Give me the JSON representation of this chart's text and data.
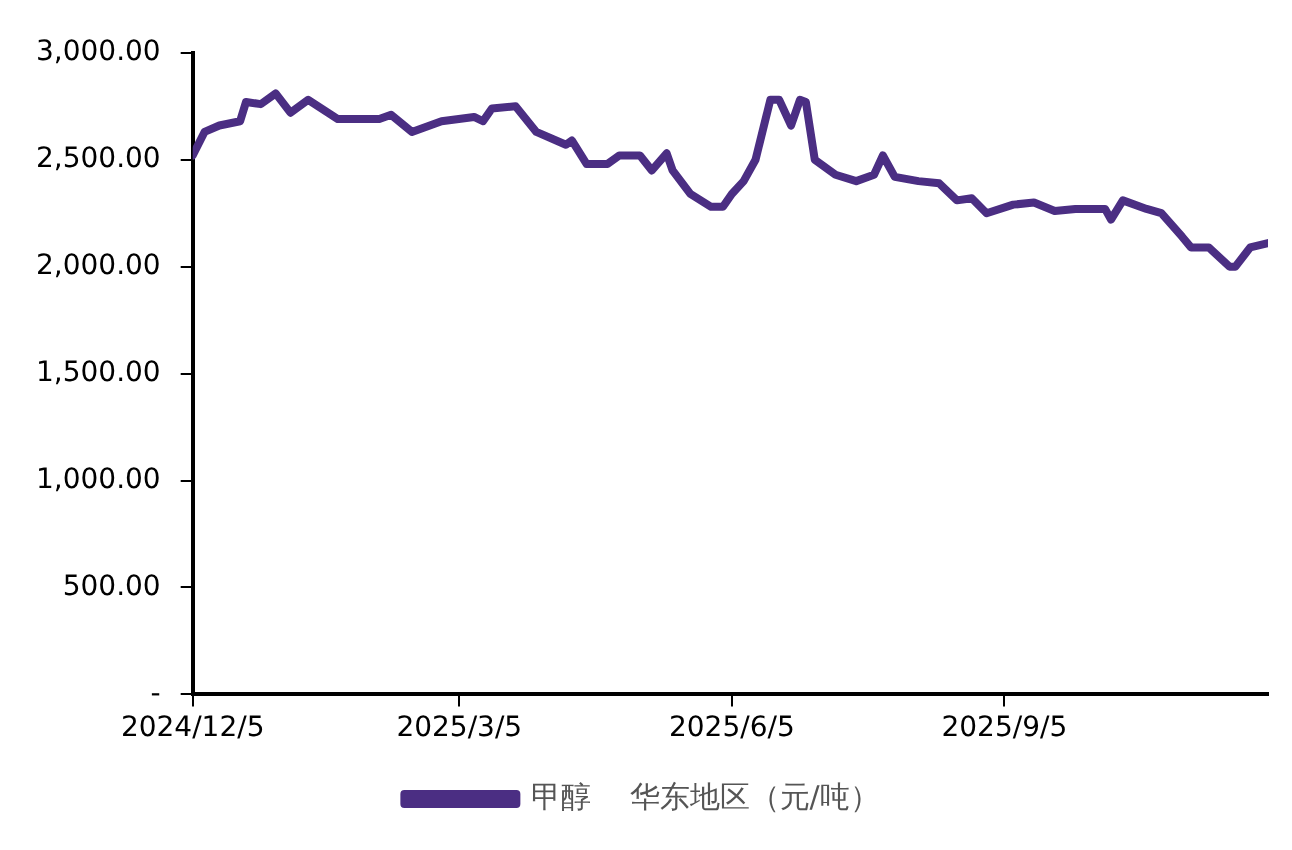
{
  "chart_data": {
    "type": "line",
    "legend": "bottom",
    "x": [
      "2024-12-05",
      "2024-12-09",
      "2024-12-14",
      "2024-12-21",
      "2024-12-23",
      "2024-12-28",
      "2025-01-02",
      "2025-01-07",
      "2025-01-13",
      "2025-01-23",
      "2025-02-06",
      "2025-02-10",
      "2025-02-17",
      "2025-02-27",
      "2025-03-10",
      "2025-03-13",
      "2025-03-16",
      "2025-03-24",
      "2025-03-31",
      "2025-04-10",
      "2025-04-12",
      "2025-04-17",
      "2025-04-24",
      "2025-04-28",
      "2025-05-05",
      "2025-05-09",
      "2025-05-14",
      "2025-05-16",
      "2025-05-22",
      "2025-05-29",
      "2025-06-02",
      "2025-06-05",
      "2025-06-09",
      "2025-06-13",
      "2025-06-18",
      "2025-06-21",
      "2025-06-25",
      "2025-06-28",
      "2025-06-30",
      "2025-07-03",
      "2025-07-10",
      "2025-07-17",
      "2025-07-23",
      "2025-07-26",
      "2025-07-30",
      "2025-08-07",
      "2025-08-14",
      "2025-08-20",
      "2025-08-25",
      "2025-08-30",
      "2025-09-08",
      "2025-09-15",
      "2025-09-22",
      "2025-09-29",
      "2025-10-09",
      "2025-10-11",
      "2025-10-15",
      "2025-10-23",
      "2025-10-28",
      "2025-11-04",
      "2025-11-07",
      "2025-11-13",
      "2025-11-20",
      "2025-11-22",
      "2025-11-27",
      "2025-12-03"
    ],
    "series": [
      {
        "name": "甲醇    华东地区（元/吨）",
        "color": "#4b2e83",
        "values": [
          2520,
          2630,
          2660,
          2680,
          2770,
          2760,
          2810,
          2720,
          2780,
          2690,
          2690,
          2710,
          2630,
          2680,
          2700,
          2680,
          2740,
          2750,
          2630,
          2570,
          2590,
          2480,
          2480,
          2520,
          2520,
          2450,
          2530,
          2450,
          2340,
          2280,
          2280,
          2340,
          2400,
          2500,
          2780,
          2780,
          2660,
          2780,
          2770,
          2500,
          2430,
          2400,
          2430,
          2520,
          2420,
          2400,
          2390,
          2310,
          2320,
          2250,
          2290,
          2300,
          2260,
          2270,
          2270,
          2220,
          2310,
          2270,
          2250,
          2140,
          2090,
          2090,
          2000,
          2000,
          2090,
          2110
        ]
      }
    ],
    "xlim": [
      "2024-12-05",
      "2025-12-03"
    ],
    "xticks": [
      {
        "value": "2024-12-05",
        "label": "2024/12/5"
      },
      {
        "value": "2025-03-05",
        "label": "2025/3/5"
      },
      {
        "value": "2025-06-05",
        "label": "2025/6/5"
      },
      {
        "value": "2025-09-05",
        "label": "2025/9/5"
      }
    ],
    "ylim": [
      0,
      3000
    ],
    "yticks": [
      {
        "value": 0,
        "label": "-"
      },
      {
        "value": 500,
        "label": "500.00"
      },
      {
        "value": 1000,
        "label": "1,000.00"
      },
      {
        "value": 1500,
        "label": "1,500.00"
      },
      {
        "value": 2000,
        "label": "2,000.00"
      },
      {
        "value": 2500,
        "label": "2,500.00"
      },
      {
        "value": 3000,
        "label": "3,000.00"
      }
    ],
    "grid": false,
    "marker": "none",
    "line_style": "solid"
  }
}
